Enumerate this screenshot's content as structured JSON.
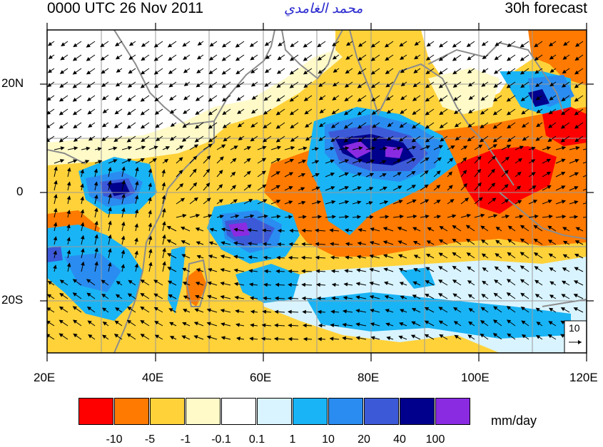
{
  "header": {
    "init_time": "0000 UTC 26 Nov 2011",
    "author": "محمد الغامدي",
    "forecast": "30h forecast"
  },
  "axes": {
    "lon_labels": [
      "20E",
      "40E",
      "60E",
      "80E",
      "100E",
      "120E"
    ],
    "lat_labels": [
      "20N",
      "0",
      "20S"
    ]
  },
  "reference_vector": {
    "label": "10"
  },
  "legend": {
    "units": "mm/day",
    "levels": [
      "-10",
      "-5",
      "-1",
      "-0.1",
      "0.1",
      "1",
      "10",
      "20",
      "40",
      "100"
    ],
    "colors": [
      "#ff0000",
      "#ff7a00",
      "#ffd23a",
      "#fffac8",
      "#ffffff",
      "#d9f4ff",
      "#19b4f5",
      "#2a8cf0",
      "#3c5ad8",
      "#00008c",
      "#8a2be2"
    ]
  }
}
